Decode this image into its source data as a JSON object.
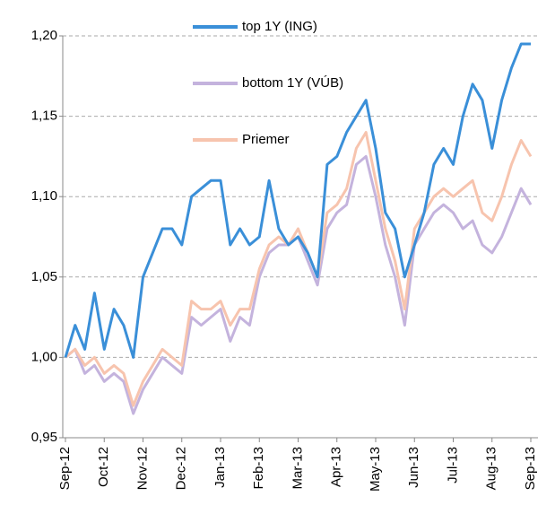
{
  "chart_data": {
    "type": "line",
    "categories": [
      "Sep-12",
      null,
      null,
      null,
      "Oct-12",
      null,
      null,
      null,
      "Nov-12",
      null,
      null,
      null,
      "Dec-12",
      null,
      null,
      null,
      "Jan-13",
      null,
      null,
      null,
      "Feb-13",
      null,
      null,
      null,
      "Mar-13",
      null,
      null,
      null,
      "Apr-13",
      null,
      null,
      null,
      "May-13",
      null,
      null,
      null,
      "Jun-13",
      null,
      null,
      null,
      "Jul-13",
      null,
      null,
      null,
      "Aug-13",
      null,
      null,
      null,
      "Sep-13"
    ],
    "series": [
      {
        "name": "top 1Y (ING)",
        "color": "#3a8fd8",
        "values": [
          1.0,
          1.02,
          1.005,
          1.04,
          1.005,
          1.03,
          1.02,
          1.0,
          1.05,
          1.065,
          1.08,
          1.08,
          1.07,
          1.1,
          1.105,
          1.11,
          1.11,
          1.07,
          1.08,
          1.07,
          1.075,
          1.11,
          1.08,
          1.07,
          1.075,
          1.065,
          1.05,
          1.12,
          1.125,
          1.14,
          1.15,
          1.16,
          1.13,
          1.09,
          1.08,
          1.05,
          1.07,
          1.09,
          1.12,
          1.13,
          1.12,
          1.15,
          1.17,
          1.16,
          1.13,
          1.16,
          1.18,
          1.195,
          1.195
        ]
      },
      {
        "name": "bottom 1Y (VÚB)",
        "color": "#c4b3dd",
        "values": [
          1.0,
          1.005,
          0.99,
          0.995,
          0.985,
          0.99,
          0.985,
          0.965,
          0.98,
          0.99,
          1.0,
          0.995,
          0.99,
          1.025,
          1.02,
          1.025,
          1.03,
          1.01,
          1.025,
          1.02,
          1.05,
          1.065,
          1.07,
          1.07,
          1.075,
          1.06,
          1.045,
          1.08,
          1.09,
          1.095,
          1.12,
          1.125,
          1.1,
          1.07,
          1.05,
          1.02,
          1.07,
          1.08,
          1.09,
          1.095,
          1.09,
          1.08,
          1.085,
          1.07,
          1.065,
          1.075,
          1.09,
          1.105,
          1.095
        ]
      },
      {
        "name": "Priemer",
        "color": "#f7c4ae",
        "values": [
          1.0,
          1.005,
          0.995,
          1.0,
          0.99,
          0.995,
          0.99,
          0.97,
          0.985,
          0.995,
          1.005,
          1.0,
          0.995,
          1.035,
          1.03,
          1.03,
          1.035,
          1.02,
          1.03,
          1.03,
          1.055,
          1.07,
          1.075,
          1.07,
          1.08,
          1.065,
          1.05,
          1.09,
          1.095,
          1.105,
          1.13,
          1.14,
          1.11,
          1.08,
          1.06,
          1.03,
          1.08,
          1.09,
          1.1,
          1.105,
          1.1,
          1.105,
          1.11,
          1.09,
          1.085,
          1.1,
          1.12,
          1.135,
          1.125
        ]
      }
    ],
    "ylim": [
      0.95,
      1.2
    ],
    "yticks": [
      {
        "value": 0.95,
        "label": "0,95"
      },
      {
        "value": 1.0,
        "label": "1,00"
      },
      {
        "value": 1.05,
        "label": "1,05"
      },
      {
        "value": 1.1,
        "label": "1,10"
      },
      {
        "value": 1.15,
        "label": "1,15"
      },
      {
        "value": 1.2,
        "label": "1,20"
      }
    ],
    "grid": true
  }
}
